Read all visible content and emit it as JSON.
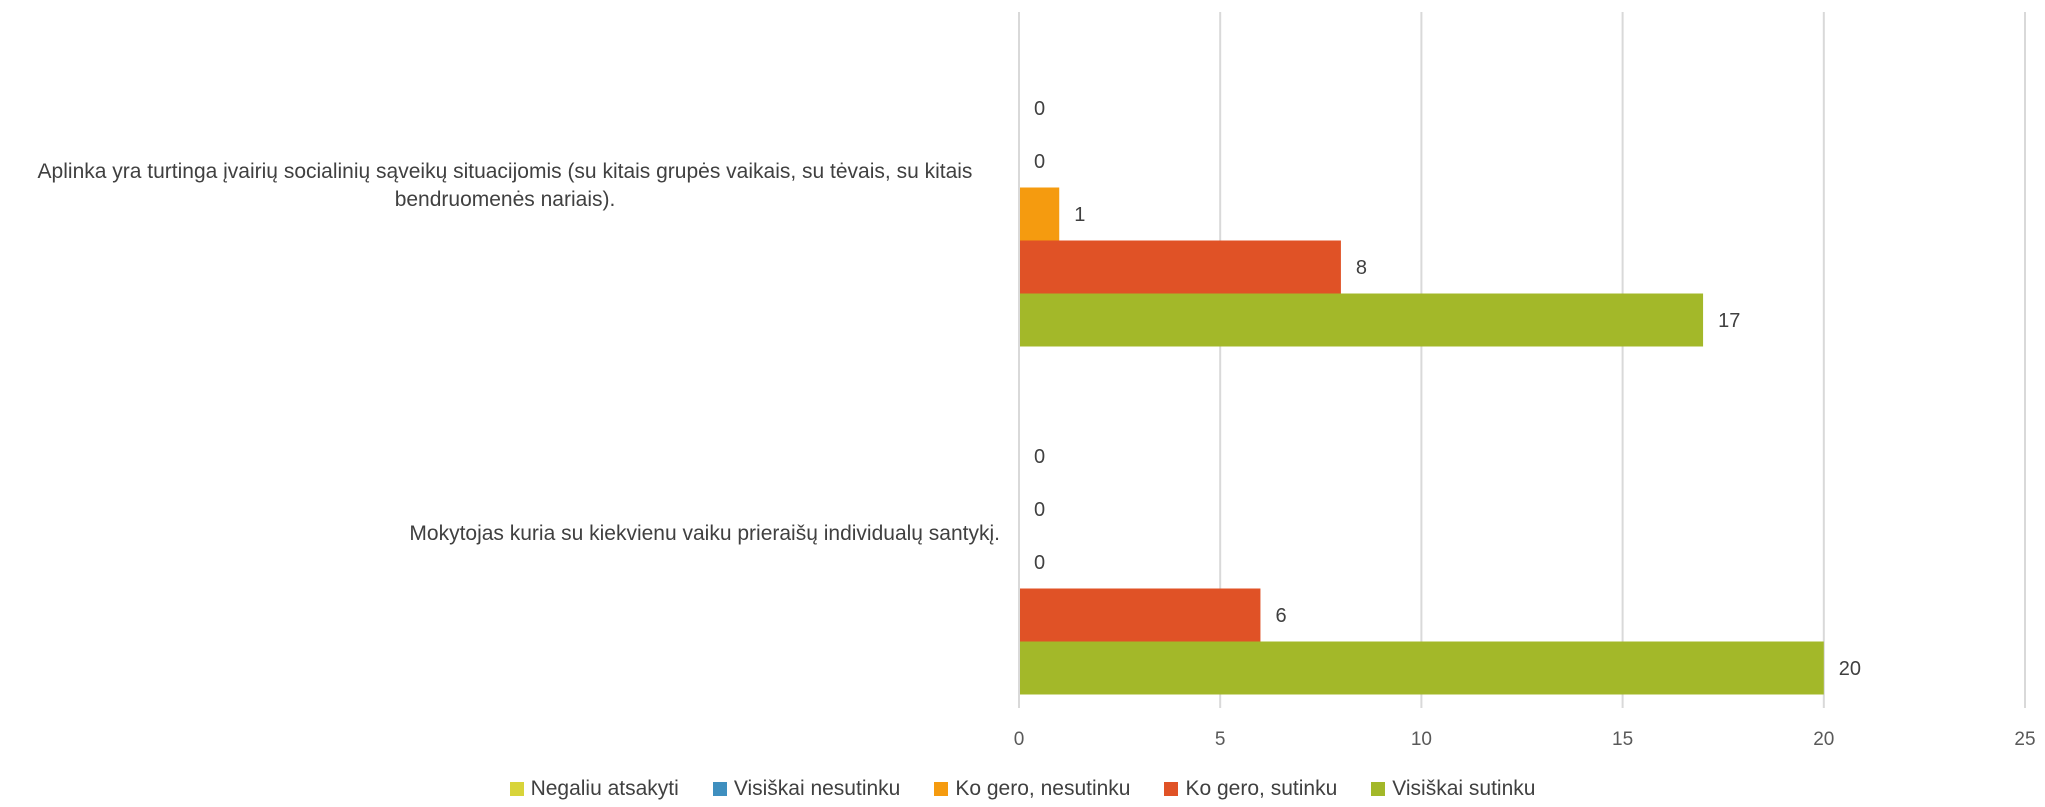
{
  "chart_data": {
    "type": "bar",
    "orientation": "horizontal",
    "categories": [
      "Aplinka yra turtinga įvairių socialinių sąveikų situacijomis (su kitais grupės vaikais, su tėvais, su kitais bendruomenės nariais).",
      "Mokytojas kuria su kiekvienu vaiku prieraišų individualų santykį."
    ],
    "series": [
      {
        "name": "Negaliu atsakyti",
        "color": "#d8d43a",
        "values": [
          0,
          0
        ]
      },
      {
        "name": "Visiškai nesutinku",
        "color": "#3f8fbf",
        "values": [
          0,
          0
        ]
      },
      {
        "name": "Ko gero, nesutinku",
        "color": "#f59b0f",
        "values": [
          1,
          0
        ]
      },
      {
        "name": "Ko gero, sutinku",
        "color": "#e05226",
        "values": [
          8,
          6
        ]
      },
      {
        "name": "Visiškai sutinku",
        "color": "#a3b829",
        "values": [
          17,
          20
        ]
      }
    ],
    "xlim": [
      0,
      25
    ],
    "xticks": [
      "0",
      "5",
      "10",
      "15",
      "20",
      "25"
    ],
    "grid": true,
    "legend_position": "bottom",
    "title": "",
    "xlabel": "",
    "ylabel": ""
  }
}
